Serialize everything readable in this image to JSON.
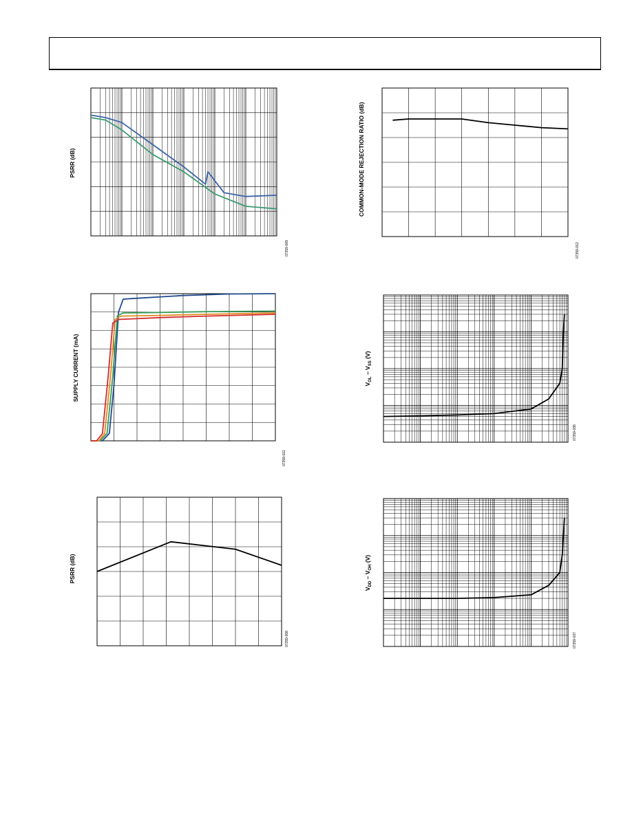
{
  "charts": {
    "c1": {
      "ylabel": "PSRR (dB)",
      "fignum": "07359-009",
      "chart_data": {
        "type": "line",
        "x_scale": "log",
        "xlim": [
          10,
          10000000
        ],
        "ylim": [
          0,
          120
        ],
        "grid": true,
        "series": [
          {
            "color": "#3b63a8",
            "x": [
              10,
              30,
              100,
              1000,
              10000,
              50000,
              60000,
              200000,
              1000000,
              10000000
            ],
            "y": [
              98,
              96,
              92,
              74,
              56,
              42,
              52,
              35,
              32,
              33
            ]
          },
          {
            "color": "#3a9a72",
            "x": [
              10,
              30,
              100,
              1000,
              10000,
              100000,
              1000000,
              10000000
            ],
            "y": [
              96,
              94,
              86,
              66,
              52,
              34,
              24,
              22
            ]
          }
        ]
      }
    },
    "c2": {
      "ylabel": "COMMON-MODE REJECTION RATIO (dB)",
      "fignum": "07359-012",
      "chart_data": {
        "type": "line",
        "xlim": [
          0,
          7
        ],
        "ylim": [
          0,
          120
        ],
        "grid": true,
        "series": [
          {
            "color": "#000000",
            "x": [
              0.4,
              1,
              2,
              3,
              4,
              5,
              6,
              7
            ],
            "y": [
              94,
              95,
              95,
              95,
              92,
              90,
              88,
              87
            ]
          }
        ]
      }
    },
    "c3": {
      "ylabel": "SUPPLY CURRENT (mA)",
      "fignum": "07359-011",
      "chart_data": {
        "type": "line",
        "xlim": [
          0,
          8
        ],
        "ylim": [
          0,
          8
        ],
        "grid": true,
        "series": [
          {
            "color": "#1f4a8c",
            "x": [
              0,
              0.5,
              0.8,
              1.0,
              1.2,
              1.4,
              2,
              4,
              6,
              8
            ],
            "y": [
              0,
              0,
              0.4,
              3.0,
              7.0,
              7.7,
              7.75,
              7.9,
              7.98,
              8.0
            ]
          },
          {
            "color": "#3a9a5a",
            "x": [
              0,
              0.4,
              0.7,
              0.95,
              1.15,
              1.4,
              3,
              5,
              8
            ],
            "y": [
              0,
              0,
              0.4,
              3.5,
              6.8,
              6.95,
              6.98,
              7.02,
              7.05
            ]
          },
          {
            "color": "#e08a20",
            "x": [
              0,
              0.35,
              0.6,
              0.85,
              1.05,
              1.3,
              3,
              5,
              8
            ],
            "y": [
              0,
              0,
              0.4,
              3.5,
              6.6,
              6.78,
              6.82,
              6.88,
              6.95
            ]
          },
          {
            "color": "#d42a2a",
            "x": [
              0,
              0.25,
              0.5,
              0.75,
              0.95,
              1.2,
              3,
              5,
              8
            ],
            "y": [
              0,
              0,
              0.4,
              3.5,
              6.4,
              6.6,
              6.7,
              6.78,
              6.88
            ]
          }
        ]
      }
    },
    "c4": {
      "ylabel_main": "V",
      "ylabel_sub1": "OL",
      "ylabel_mid": " – V",
      "ylabel_sub2": "SS",
      "ylabel_tail": " (V)",
      "fignum": "07359-036",
      "chart_data": {
        "type": "line",
        "x_scale": "log",
        "y_scale": "log",
        "xlim": [
          0.001,
          100
        ],
        "ylim": [
          0.001,
          10
        ],
        "grid": true,
        "series": [
          {
            "color": "#000000",
            "x": [
              0.001,
              0.01,
              0.1,
              1,
              10,
              30,
              60,
              70,
              75,
              80
            ],
            "y": [
              0.005,
              0.0052,
              0.0055,
              0.006,
              0.008,
              0.015,
              0.04,
              0.1,
              1,
              3
            ]
          }
        ]
      }
    },
    "c5": {
      "ylabel": "PSRR (dB)",
      "fignum": "07359-008",
      "chart_data": {
        "type": "line",
        "xlim": [
          0,
          8
        ],
        "ylim": [
          0,
          120
        ],
        "grid": true,
        "series": [
          {
            "color": "#000000",
            "x": [
              0,
              3.2,
              6,
              8
            ],
            "y": [
              60,
              84,
              78,
              65
            ]
          }
        ]
      }
    },
    "c6": {
      "ylabel_main": "V",
      "ylabel_sub1": "DD",
      "ylabel_mid": " – V",
      "ylabel_sub2": "OH",
      "ylabel_tail": " (V)",
      "fignum": "07359-037",
      "chart_data": {
        "type": "line",
        "x_scale": "log",
        "y_scale": "log",
        "xlim": [
          0.001,
          100
        ],
        "ylim": [
          0.001,
          10
        ],
        "grid": true,
        "series": [
          {
            "color": "#000000",
            "x": [
              0.001,
              0.01,
              0.1,
              1,
              10,
              30,
              60,
              70,
              75,
              80
            ],
            "y": [
              0.02,
              0.02,
              0.02,
              0.021,
              0.025,
              0.045,
              0.1,
              0.3,
              1,
              3
            ]
          }
        ]
      }
    }
  }
}
